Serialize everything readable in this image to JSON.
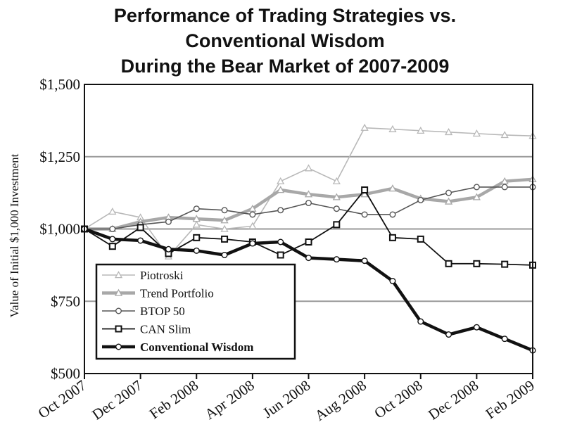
{
  "title_lines": [
    "Performance of Trading Strategies vs.",
    "Conventional Wisdom",
    "During the Bear Market of 2007-2009"
  ],
  "chart_data": {
    "type": "line",
    "title": "Performance of Trading Strategies vs. Conventional Wisdom During the Bear Market of 2007-2009",
    "xlabel": "",
    "ylabel": "Value of Initial $1,000 Investment",
    "ylim": [
      500,
      1500
    ],
    "y_ticks": [
      "$500",
      "$750",
      "$1,000",
      "$1,250",
      "$1,500"
    ],
    "y_tick_values": [
      500,
      750,
      1000,
      1250,
      1500
    ],
    "x_tick_labels": [
      "Oct 2007",
      "Dec 2007",
      "Feb 2008",
      "Apr 2008",
      "Jun 2008",
      "Aug 2008",
      "Oct 2008",
      "Dec 2008",
      "Feb 2009"
    ],
    "x": [
      "Oct 2007",
      "Nov 2007",
      "Dec 2007",
      "Jan 2008",
      "Feb 2008",
      "Mar 2008",
      "Apr 2008",
      "May 2008",
      "Jun 2008",
      "Jul 2008",
      "Aug 2008",
      "Sep 2008",
      "Oct 2008",
      "Nov 2008",
      "Dec 2008",
      "Jan 2009",
      "Feb 2009"
    ],
    "grid": true,
    "legend_position": "bottom-left",
    "series": [
      {
        "name": "Piotroski",
        "style": "thin-light",
        "marker": "triangle",
        "color": "#b8b8b8",
        "values": [
          1000,
          1060,
          1040,
          905,
          1015,
          1000,
          1010,
          1165,
          1210,
          1165,
          1350,
          1345,
          1340,
          1335,
          1330,
          1325,
          1322
        ]
      },
      {
        "name": "Trend Portfolio",
        "style": "thick-light",
        "marker": "triangle",
        "color": "#a8a8a8",
        "values": [
          1000,
          1000,
          1025,
          1040,
          1035,
          1030,
          1070,
          1135,
          1120,
          1110,
          1120,
          1140,
          1105,
          1095,
          1110,
          1165,
          1172
        ]
      },
      {
        "name": "BTOP 50",
        "style": "thin-dark",
        "marker": "circle",
        "color": "#555555",
        "values": [
          1000,
          1000,
          1015,
          1025,
          1070,
          1065,
          1050,
          1065,
          1090,
          1070,
          1050,
          1050,
          1100,
          1125,
          1145,
          1145,
          1145
        ]
      },
      {
        "name": "CAN Slim",
        "style": "thin-black",
        "marker": "square",
        "color": "#111111",
        "values": [
          1000,
          940,
          1005,
          915,
          970,
          965,
          955,
          910,
          955,
          1015,
          1135,
          970,
          965,
          880,
          880,
          878,
          875
        ]
      },
      {
        "name": "Conventional Wisdom",
        "style": "thick-black",
        "marker": "circle",
        "color": "#111111",
        "values": [
          1000,
          965,
          960,
          930,
          925,
          910,
          950,
          955,
          900,
          895,
          890,
          820,
          680,
          635,
          660,
          620,
          580
        ]
      }
    ]
  }
}
